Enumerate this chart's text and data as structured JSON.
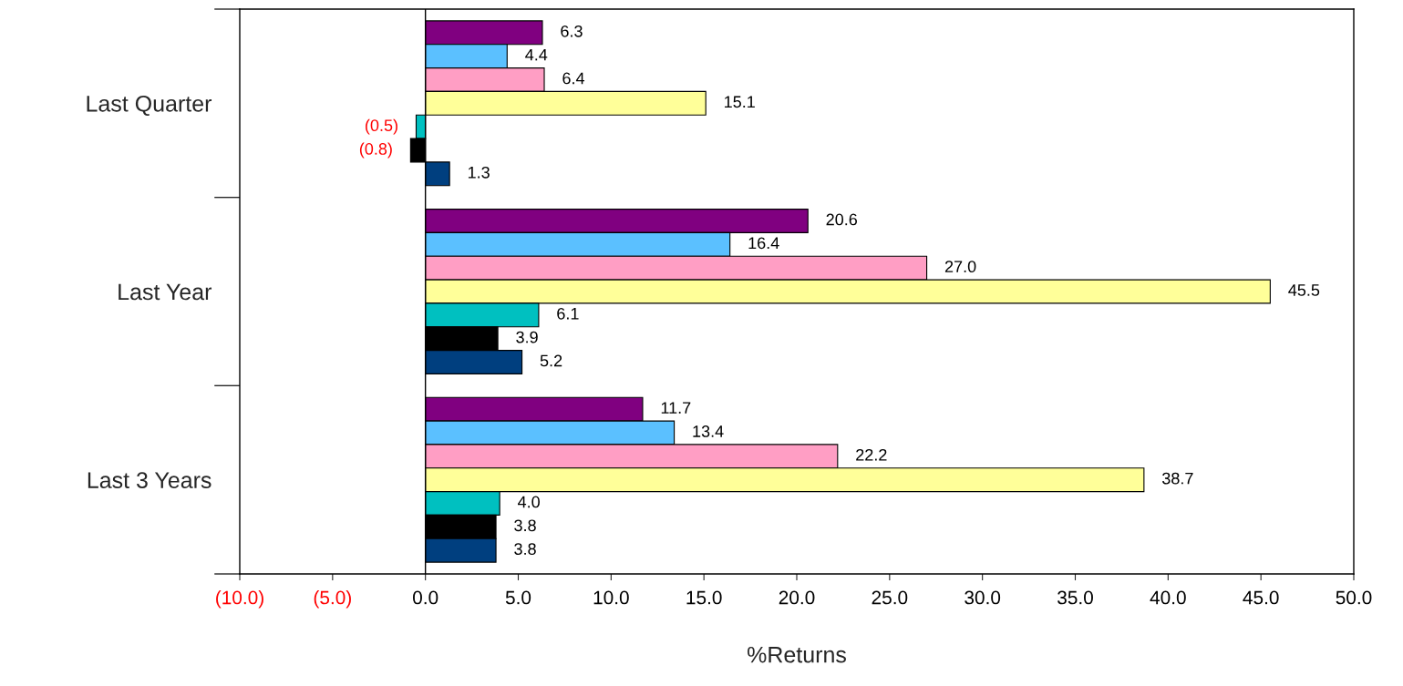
{
  "chart_data": {
    "type": "bar",
    "orientation": "horizontal",
    "xlabel": "%Returns",
    "categories": [
      "Last Quarter",
      "Last Year",
      "Last 3 Years"
    ],
    "series": [
      {
        "color": "#800080",
        "values": [
          6.3,
          20.6,
          11.7
        ],
        "value_labels": [
          "6.3",
          "20.6",
          "11.7"
        ]
      },
      {
        "color": "#5bc0ff",
        "values": [
          4.4,
          16.4,
          13.4
        ],
        "value_labels": [
          "4.4",
          "16.4",
          "13.4"
        ]
      },
      {
        "color": "#ff9ec4",
        "values": [
          6.4,
          27.0,
          22.2
        ],
        "value_labels": [
          "6.4",
          "27.0",
          "22.2"
        ]
      },
      {
        "color": "#ffff99",
        "values": [
          15.1,
          45.5,
          38.7
        ],
        "value_labels": [
          "15.1",
          "45.5",
          "38.7"
        ]
      },
      {
        "color": "#00c0c0",
        "values": [
          -0.5,
          6.1,
          4.0
        ],
        "value_labels": [
          "(0.5)",
          "6.1",
          "4.0"
        ]
      },
      {
        "color": "#000000",
        "values": [
          -0.8,
          3.9,
          3.8
        ],
        "value_labels": [
          "(0.8)",
          "3.9",
          "3.8"
        ]
      },
      {
        "color": "#003f7f",
        "values": [
          1.3,
          5.2,
          3.8
        ],
        "value_labels": [
          "1.3",
          "5.2",
          "3.8"
        ]
      }
    ],
    "xlim": [
      -10,
      50
    ],
    "xticks": [
      {
        "value": -10,
        "label": "(10.0)"
      },
      {
        "value": -5,
        "label": "(5.0)"
      },
      {
        "value": 0,
        "label": "0.0"
      },
      {
        "value": 5,
        "label": "5.0"
      },
      {
        "value": 10,
        "label": "10.0"
      },
      {
        "value": 15,
        "label": "15.0"
      },
      {
        "value": 20,
        "label": "20.0"
      },
      {
        "value": 25,
        "label": "25.0"
      },
      {
        "value": 30,
        "label": "30.0"
      },
      {
        "value": 35,
        "label": "35.0"
      },
      {
        "value": 40,
        "label": "40.0"
      },
      {
        "value": 45,
        "label": "45.0"
      },
      {
        "value": 50,
        "label": "50.0"
      }
    ],
    "ref_lines": [
      {
        "axis": "x",
        "value": 0,
        "color": "#000000"
      }
    ],
    "grid": false
  }
}
